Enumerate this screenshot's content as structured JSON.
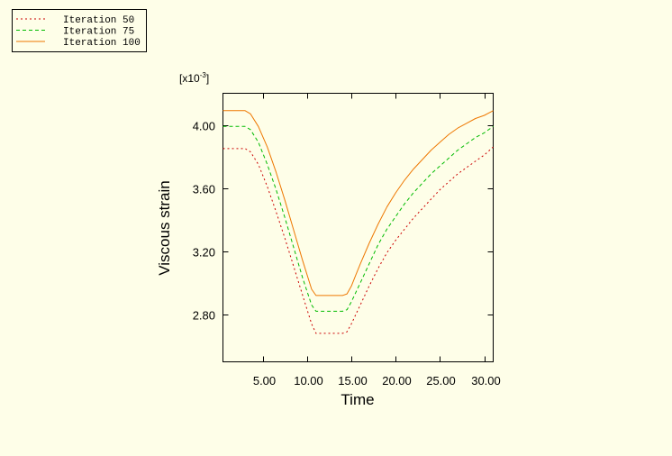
{
  "chart_data": {
    "type": "line",
    "title": "",
    "xlabel": "Time",
    "ylabel": "Viscous strain",
    "y_multiplier": {
      "base": "[x10",
      "exponent": "-3",
      "close": "]"
    },
    "xlim": [
      0.5,
      31
    ],
    "ylim": [
      2.5,
      4.2
    ],
    "x_ticks": [
      5,
      10,
      15,
      20,
      25,
      30
    ],
    "x_tick_labels": [
      "5.00",
      "10.00",
      "15.00",
      "20.00",
      "25.00",
      "30.00"
    ],
    "y_ticks": [
      2.8,
      3.2,
      3.6,
      4.0
    ],
    "y_tick_labels": [
      "2.80",
      "3.20",
      "3.60",
      "4.00"
    ],
    "grid": false,
    "legend_position": "top-left",
    "series": [
      {
        "name": "Iteration 50",
        "color": "#cc0000",
        "dash": "dotted",
        "x": [
          0.5,
          3.0,
          3.6,
          4.5,
          5.5,
          6.5,
          7.5,
          8.5,
          9.5,
          10.5,
          11.0,
          12.0,
          13.0,
          14.0,
          14.5,
          15.0,
          15.5,
          16.0,
          17.0,
          18.0,
          19.0,
          20.0,
          21.0,
          22.0,
          23.0,
          24.0,
          25.0,
          26.0,
          27.0,
          28.0,
          29.0,
          30.0,
          31.0
        ],
        "y": [
          3.85,
          3.85,
          3.83,
          3.75,
          3.61,
          3.45,
          3.28,
          3.1,
          2.92,
          2.74,
          2.68,
          2.68,
          2.68,
          2.68,
          2.69,
          2.74,
          2.8,
          2.86,
          2.98,
          3.09,
          3.19,
          3.27,
          3.34,
          3.41,
          3.47,
          3.53,
          3.59,
          3.64,
          3.69,
          3.73,
          3.77,
          3.81,
          3.86
        ]
      },
      {
        "name": "Iteration 75",
        "color": "#00bb00",
        "dash": "dashed",
        "x": [
          0.5,
          3.0,
          3.6,
          4.5,
          5.5,
          6.5,
          7.5,
          8.5,
          9.5,
          10.5,
          11.0,
          12.0,
          13.0,
          14.0,
          14.5,
          15.0,
          15.5,
          16.0,
          17.0,
          18.0,
          19.0,
          20.0,
          21.0,
          22.0,
          23.0,
          24.0,
          25.0,
          26.0,
          27.0,
          28.0,
          29.0,
          30.0,
          31.0
        ],
        "y": [
          3.99,
          3.99,
          3.97,
          3.89,
          3.75,
          3.59,
          3.41,
          3.22,
          3.03,
          2.86,
          2.82,
          2.82,
          2.82,
          2.82,
          2.83,
          2.88,
          2.94,
          3.0,
          3.12,
          3.24,
          3.34,
          3.42,
          3.5,
          3.57,
          3.63,
          3.69,
          3.74,
          3.79,
          3.84,
          3.88,
          3.92,
          3.95,
          3.99
        ]
      },
      {
        "name": "Iteration 100",
        "color": "#ee7700",
        "dash": "solid",
        "x": [
          0.5,
          3.0,
          3.6,
          4.5,
          5.5,
          6.5,
          7.5,
          8.5,
          9.5,
          10.5,
          11.0,
          12.0,
          13.0,
          14.0,
          14.5,
          15.0,
          15.5,
          16.0,
          17.0,
          18.0,
          19.0,
          20.0,
          21.0,
          22.0,
          23.0,
          24.0,
          25.0,
          26.0,
          27.0,
          28.0,
          29.0,
          30.0,
          31.0
        ],
        "y": [
          4.09,
          4.09,
          4.07,
          3.99,
          3.86,
          3.7,
          3.52,
          3.33,
          3.14,
          2.96,
          2.92,
          2.92,
          2.92,
          2.92,
          2.93,
          2.98,
          3.05,
          3.12,
          3.25,
          3.37,
          3.48,
          3.57,
          3.65,
          3.72,
          3.78,
          3.84,
          3.89,
          3.94,
          3.98,
          4.01,
          4.04,
          4.06,
          4.09
        ]
      }
    ]
  }
}
